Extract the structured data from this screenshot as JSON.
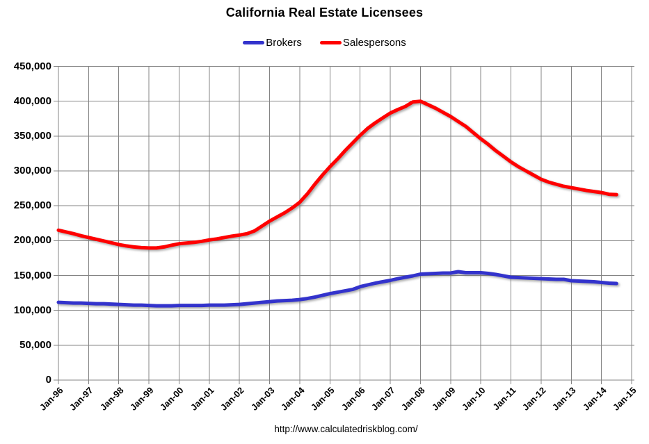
{
  "title": "California Real Estate Licensees",
  "legend": {
    "items": [
      {
        "label": "Brokers",
        "color": "#3333cc"
      },
      {
        "label": "Salespersons",
        "color": "#ff0000"
      }
    ]
  },
  "footer": {
    "url": "http://www.calculatedriskblog.com/"
  },
  "colors": {
    "background": "#ffffff",
    "grid": "#848484",
    "text": "#000000",
    "brokers": "#3333cc",
    "salespersons": "#ff0000"
  },
  "chart_data": {
    "type": "line",
    "title": "California Real Estate Licensees",
    "xlabel": "",
    "ylabel": "",
    "grid": true,
    "legend_position": "top",
    "ylim": [
      0,
      450000
    ],
    "y_ticks": [
      0,
      50000,
      100000,
      150000,
      200000,
      250000,
      300000,
      350000,
      400000,
      450000
    ],
    "x_tick_labels": [
      "Jan-96",
      "Jan-97",
      "Jan-98",
      "Jan-99",
      "Jan-00",
      "Jan-01",
      "Jan-02",
      "Jan-03",
      "Jan-04",
      "Jan-05",
      "Jan-06",
      "Jan-07",
      "Jan-08",
      "Jan-09",
      "Jan-10",
      "Jan-11",
      "Jan-12",
      "Jan-13",
      "Jan-14",
      "Jan-15"
    ],
    "x_axis_years": [
      1996,
      2015
    ],
    "x_start_year": 1996.0,
    "x_step_years": 0.25,
    "sampling_note": "quarterly estimates read from plot",
    "series": [
      {
        "name": "Brokers",
        "color": "#3333cc",
        "values": [
          111500,
          111000,
          110500,
          110500,
          110000,
          109500,
          109500,
          109000,
          108500,
          108000,
          107500,
          107500,
          107000,
          106500,
          106500,
          106500,
          107000,
          107000,
          107000,
          107000,
          107500,
          107500,
          107500,
          108000,
          108500,
          109500,
          110500,
          111500,
          112500,
          113500,
          114000,
          114500,
          115500,
          117000,
          119000,
          121500,
          124000,
          126000,
          128000,
          130000,
          134000,
          136500,
          139000,
          141000,
          143000,
          145500,
          147500,
          149500,
          152000,
          152500,
          153000,
          153500,
          153500,
          155500,
          154000,
          154000,
          154000,
          153000,
          151500,
          149500,
          147500,
          147000,
          146500,
          146000,
          145500,
          145000,
          144500,
          144500,
          142500,
          142000,
          141500,
          141000,
          140000,
          139000,
          138500
        ]
      },
      {
        "name": "Salespersons",
        "color": "#ff0000",
        "values": [
          215000,
          212500,
          210000,
          207000,
          204500,
          202000,
          199500,
          197000,
          194500,
          192500,
          191000,
          190000,
          189500,
          189500,
          191000,
          193500,
          195500,
          196500,
          197500,
          199000,
          201000,
          202500,
          204500,
          206500,
          208000,
          210000,
          214000,
          221000,
          228000,
          234000,
          240000,
          247000,
          255000,
          267000,
          281000,
          294000,
          306000,
          317000,
          329000,
          340000,
          351000,
          361000,
          369000,
          376000,
          383000,
          388000,
          392500,
          399000,
          400000,
          395000,
          390000,
          384000,
          378000,
          371000,
          364000,
          355000,
          346000,
          338000,
          329000,
          321000,
          313000,
          306000,
          300000,
          294000,
          288000,
          284000,
          281000,
          278000,
          276000,
          274000,
          272000,
          270500,
          269000,
          266500,
          266000
        ]
      }
    ]
  }
}
